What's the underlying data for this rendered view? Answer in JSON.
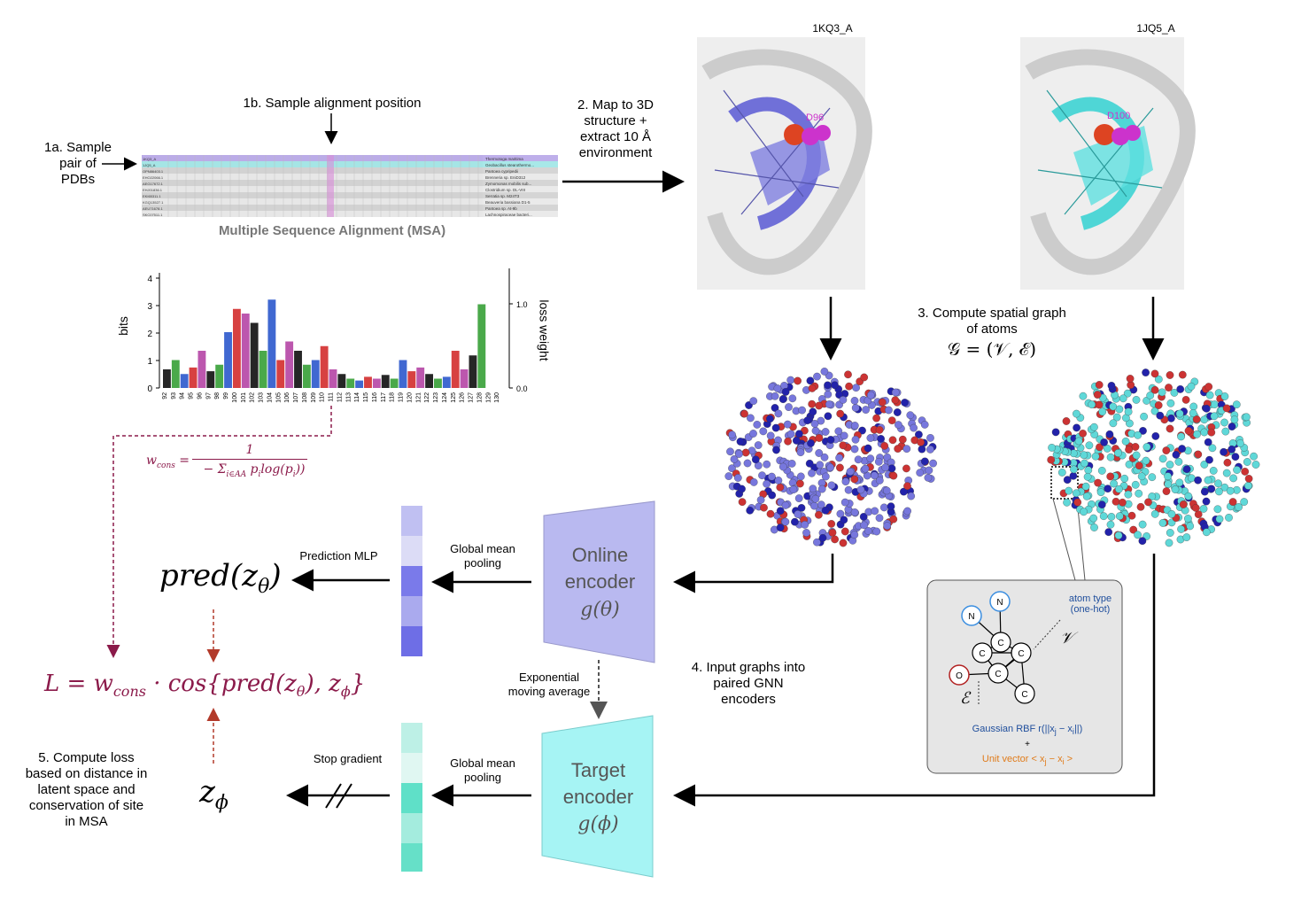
{
  "steps": {
    "s1a": "1a. Sample\npair of\nPDBs",
    "s1b": "1b. Sample alignment position",
    "msa_title": "Multiple Sequence Alignment (MSA)",
    "s2": "2. Map to 3D\nstructure +\nextract 10 Å\nenvironment",
    "s3": "3. Compute spatial graph\nof atoms",
    "s3_formula": "𝒢 = (𝒱, ℰ)",
    "s4": "4. Input graphs into\npaired GNN\nencoders",
    "s5": "5. Compute loss\nbased on distance in\nlatent space and\nconservation of site\nin MSA"
  },
  "structures": {
    "left_id": "1KQ3_A",
    "right_id": "1JQ5_A",
    "left_residue": "D96",
    "right_residue": "D100"
  },
  "logo": {
    "ylabel_left": "bits",
    "ylabel_right": "loss weight",
    "yticks_left": [
      "0",
      "1",
      "2",
      "3",
      "4"
    ],
    "yticks_right": [
      "0.0",
      "1.0"
    ],
    "xticks": [
      "92",
      "93",
      "94",
      "95",
      "96",
      "97",
      "98",
      "99",
      "100",
      "101",
      "102",
      "103",
      "104",
      "105",
      "106",
      "107",
      "108",
      "109",
      "110",
      "111",
      "112",
      "113",
      "114",
      "115",
      "116",
      "117",
      "118",
      "119",
      "120",
      "121",
      "122",
      "123",
      "124",
      "125",
      "126",
      "127",
      "128",
      "129",
      "130"
    ]
  },
  "msa_rows": [
    "Thermotoga maritima",
    "Geobacillus stearothermo...",
    "Pantoea cypripedii",
    "Brenneria sp. EniD312",
    "Zymomonas mobilis sub...",
    "Clostridium sp. DL-VIII",
    "Serratia sp. M24T3",
    "Beauveria bassiana D1-5",
    "Pantoea sp. At-9b",
    "Lachnospiraceae bacteri..."
  ],
  "msa_ids": [
    "1KQ3_A",
    "1JQ5_A",
    "OPN86403.1",
    "EHO22066.1",
    "AEG17672.1",
    "EHJ01836.1",
    "EKI65311.1",
    "KGQ13527.1",
    "AEU71678.1",
    "SKC07511.1"
  ],
  "weight_formula": {
    "lhs": "w",
    "lhs_sub": "cons",
    "numerator": "1",
    "denominator": "− Σ",
    "den_sub": "i∈AA",
    "den_rest": "p",
    "den_rest_sub": "i",
    "den_log": "log(p",
    "den_log_sub": "i",
    "den_close": "))"
  },
  "loss_formula": "L = w",
  "loss_sub": "cons",
  "loss_rest": " · cos{pred(z",
  "loss_theta": "θ",
  "loss_mid": "), z",
  "loss_phi": "ϕ",
  "loss_close": "}",
  "pred": {
    "text": "pred(z",
    "sub": "θ",
    "close": ")"
  },
  "z_phi": {
    "text": "z",
    "sub": "ϕ"
  },
  "labels": {
    "prediction_mlp": "Prediction MLP",
    "pooling_top": "Global mean\npooling",
    "pooling_bottom": "Global mean\npooling",
    "stop_gradient": "Stop gradient",
    "ema": "Exponential\nmoving average"
  },
  "encoders": {
    "online_title": "Online\nencoder",
    "online_fn": "g(θ)",
    "target_title": "Target\nencoder",
    "target_fn": "g(ϕ)"
  },
  "inset": {
    "atom_type": "atom type\n(one-hot)",
    "V": "𝒱",
    "E": "ℰ",
    "rbf": "Gaussian RBF  r(||x",
    "rbf_j": "j",
    "rbf_mid": " − x",
    "rbf_i": "i",
    "rbf_close": "||)",
    "plus": "+",
    "unit": "Unit vector  < x",
    "unit_j": "j",
    "unit_mid": " − x",
    "unit_i": "i",
    "unit_close": " >",
    "nodes": [
      "N",
      "N",
      "C",
      "C",
      "C",
      "O",
      "C",
      "C"
    ]
  },
  "colors": {
    "online": "#b9b9f0",
    "target": "#a6f4f4",
    "loss": "#8b1a4a",
    "red_arrow": "#b23a2a",
    "blue_atom": "#7777dd",
    "cyan_atom": "#5fd8d8",
    "oxygen": "#cc3333",
    "nitrogen": "#2222aa"
  }
}
